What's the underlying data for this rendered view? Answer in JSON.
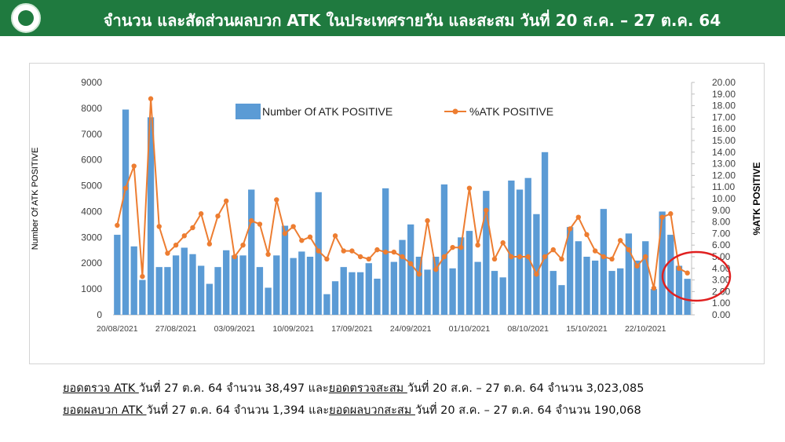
{
  "header": {
    "title": "จำนวน และสัดส่วนผลบวก ATK ในประเทศรายวัน และสะสม วันที่ 20 ส.ค. – 27 ต.ค. 64"
  },
  "chart_data": {
    "type": "bar+line",
    "ylabel_left": "Number Of ATK POSITIVE",
    "ylabel_right": "%ATK POSITIVE",
    "ylim_left": [
      0,
      9000
    ],
    "ylim_right": [
      0,
      20
    ],
    "yticks_left": [
      "0",
      "1000",
      "2000",
      "3000",
      "4000",
      "5000",
      "6000",
      "7000",
      "8000",
      "9000"
    ],
    "yticks_right": [
      "0.00",
      "1.00",
      "2.00",
      "3.00",
      "4.00",
      "5.00",
      "6.00",
      "7.00",
      "8.00",
      "9.00",
      "10.00",
      "11.00",
      "12.00",
      "13.00",
      "14.00",
      "15.00",
      "16.00",
      "17.00",
      "18.00",
      "19.00",
      "20.00"
    ],
    "xtick_labels": [
      "20/08/2021",
      "27/08/2021",
      "03/09/2021",
      "10/09/2021",
      "17/09/2021",
      "24/09/2021",
      "01/10/2021",
      "08/10/2021",
      "15/10/2021",
      "22/10/2021"
    ],
    "legend": {
      "bar": "Number Of ATK POSITIVE",
      "line": "%ATK POSITIVE",
      "placement": "top"
    },
    "bar_color": "#5b9bd5",
    "line_color": "#ed7d31",
    "series": [
      {
        "name": "Number Of ATK POSITIVE",
        "kind": "bar",
        "values": [
          3100,
          7950,
          2650,
          1350,
          7650,
          1850,
          1850,
          2300,
          2600,
          2350,
          1900,
          1200,
          1850,
          2500,
          2300,
          2300,
          4850,
          1850,
          1050,
          2300,
          3450,
          2200,
          2450,
          2250,
          4750,
          800,
          1300,
          1850,
          1650,
          1650,
          2000,
          1400,
          4900,
          2050,
          2900,
          3500,
          2250,
          1750,
          2250,
          5050,
          1800,
          3000,
          3250,
          2050,
          4800,
          1700,
          1450,
          5200,
          4850,
          5300,
          3900,
          6300,
          1700,
          1150,
          3400,
          2850,
          2250,
          2100,
          4100,
          1700,
          1800,
          3150,
          2100,
          2850,
          1000,
          4000,
          3100,
          1900,
          1394
        ]
      },
      {
        "name": "%ATK POSITIVE",
        "kind": "line",
        "values": [
          7.7,
          10.9,
          12.8,
          3.3,
          18.6,
          7.6,
          5.3,
          6.0,
          6.8,
          7.5,
          8.7,
          6.1,
          8.5,
          9.8,
          5.0,
          6.0,
          8.1,
          7.8,
          5.2,
          9.9,
          7.0,
          7.6,
          6.4,
          6.7,
          5.5,
          4.8,
          6.8,
          5.5,
          5.5,
          5.0,
          4.8,
          5.6,
          5.4,
          5.4,
          5.0,
          4.4,
          3.5,
          8.1,
          3.9,
          5.0,
          5.8,
          5.8,
          10.9,
          6.0,
          9.0,
          4.8,
          6.2,
          5.0,
          5.0,
          5.0,
          3.5,
          5.0,
          5.6,
          4.8,
          7.4,
          8.4,
          6.9,
          5.5,
          5.0,
          4.8,
          6.4,
          5.6,
          4.2,
          5.0,
          2.3,
          8.4,
          8.7,
          4.0,
          3.6
        ]
      }
    ]
  },
  "summary": {
    "line1": {
      "p1": "ยอดตรวจ ATK ",
      "p2": "วันที่ 27 ต.ค. 64 จำนวน 38,497 และ",
      "p3": "ยอดตรวจสะสม ",
      "p4": "วันที่ 20 ส.ค. – 27 ต.ค. 64 จำนวน 3,023,085"
    },
    "line2": {
      "p1": "ยอดผลบวก ATK ",
      "p2": "วันที่ 27 ต.ค. 64 จำนวน 1,394 และ",
      "p3": "ยอดผลบวกสะสม ",
      "p4": "วันที่ 20 ส.ค. – 27 ต.ค. 64 จำนวน 190,068"
    }
  }
}
